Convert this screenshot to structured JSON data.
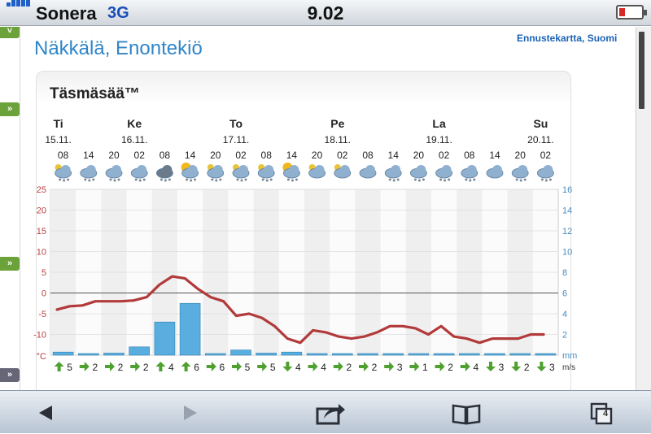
{
  "status_bar": {
    "carrier": "Sonera",
    "network": "3G",
    "time": "9.02",
    "battery_level": 0.2
  },
  "page": {
    "location_title": "Näkkälä, Enontekiö",
    "forecast_map_link": "Ennustekartta, Suomi",
    "panel_title": "Täsmäsää™"
  },
  "forecast": {
    "days": [
      {
        "name": "Ti",
        "date": "15.11."
      },
      {
        "name": "Ke",
        "date": "16.11."
      },
      {
        "name": "To",
        "date": "17.11."
      },
      {
        "name": "Pe",
        "date": "18.11."
      },
      {
        "name": "La",
        "date": "19.11."
      },
      {
        "name": "Su",
        "date": "20.11."
      }
    ],
    "hours": [
      "08",
      "14",
      "20",
      "02",
      "08",
      "14",
      "20",
      "02",
      "08",
      "14",
      "20",
      "02",
      "08",
      "14",
      "20",
      "02",
      "08",
      "14",
      "20",
      "02"
    ],
    "icons": [
      "cloud-snow-moon",
      "cloud-snow",
      "cloud-snow",
      "cloud-snow",
      "cloud-heavy-snow",
      "sun-cloud-snow",
      "moon-cloud-snow",
      "cloud-snow-moon",
      "cloud-snow-moon",
      "sun-cloud-snow",
      "moon-cloud",
      "moon-cloud",
      "cloud",
      "cloud-snow",
      "cloud-snow",
      "cloud-snow",
      "cloud-snow",
      "cloud",
      "cloud-snow",
      "cloud-snow"
    ],
    "winds": [
      {
        "speed": "5",
        "dir": "up"
      },
      {
        "speed": "2",
        "dir": "right"
      },
      {
        "speed": "2",
        "dir": "right"
      },
      {
        "speed": "2",
        "dir": "right"
      },
      {
        "speed": "4",
        "dir": "up"
      },
      {
        "speed": "6",
        "dir": "up"
      },
      {
        "speed": "6",
        "dir": "right"
      },
      {
        "speed": "5",
        "dir": "right"
      },
      {
        "speed": "5",
        "dir": "right"
      },
      {
        "speed": "4",
        "dir": "down"
      },
      {
        "speed": "4",
        "dir": "right"
      },
      {
        "speed": "2",
        "dir": "right"
      },
      {
        "speed": "2",
        "dir": "right"
      },
      {
        "speed": "3",
        "dir": "right"
      },
      {
        "speed": "1",
        "dir": "right"
      },
      {
        "speed": "2",
        "dir": "right"
      },
      {
        "speed": "4",
        "dir": "right"
      },
      {
        "speed": "3",
        "dir": "down"
      },
      {
        "speed": "2",
        "dir": "down"
      },
      {
        "speed": "3",
        "dir": "down"
      }
    ],
    "wind_unit": "m/s"
  },
  "chart_data": {
    "type": "line",
    "y_left_unit": "°C",
    "y_left_ticks": [
      25,
      20,
      15,
      10,
      5,
      0,
      -5,
      -10
    ],
    "y_left_range": [
      -15,
      25
    ],
    "y_right_unit": "mm",
    "y_right_ticks": [
      16,
      14,
      12,
      10,
      8,
      6,
      4,
      2
    ],
    "y_right_range": [
      0,
      16
    ],
    "temperature": [
      -4,
      -3.2,
      -3,
      -2,
      -2,
      -2,
      -1.8,
      -1,
      2,
      4,
      3.5,
      1,
      -1,
      -2,
      -5.5,
      -5,
      -6,
      -8,
      -11,
      -12,
      -9,
      -9.5,
      -10.5,
      -11,
      -10.5,
      -9.5,
      -8,
      -8,
      -8.5,
      -10,
      -8,
      -10.5,
      -11,
      -12,
      -11,
      -11,
      -11,
      -10,
      -10
    ],
    "precipitation": [
      0.3,
      0.1,
      0.2,
      0.8,
      3.2,
      5.0,
      0.1,
      0.5,
      0.2,
      0.3,
      0.1,
      0.05,
      0.05,
      0.1,
      0.1,
      0.15,
      0.1,
      0.05,
      0.05,
      0.05
    ],
    "colors": {
      "temperature_line": "#b23a3a",
      "precipitation_bar": "#5aaedf",
      "left_axis": "#b84040",
      "right_axis": "#4a8cc0"
    }
  }
}
